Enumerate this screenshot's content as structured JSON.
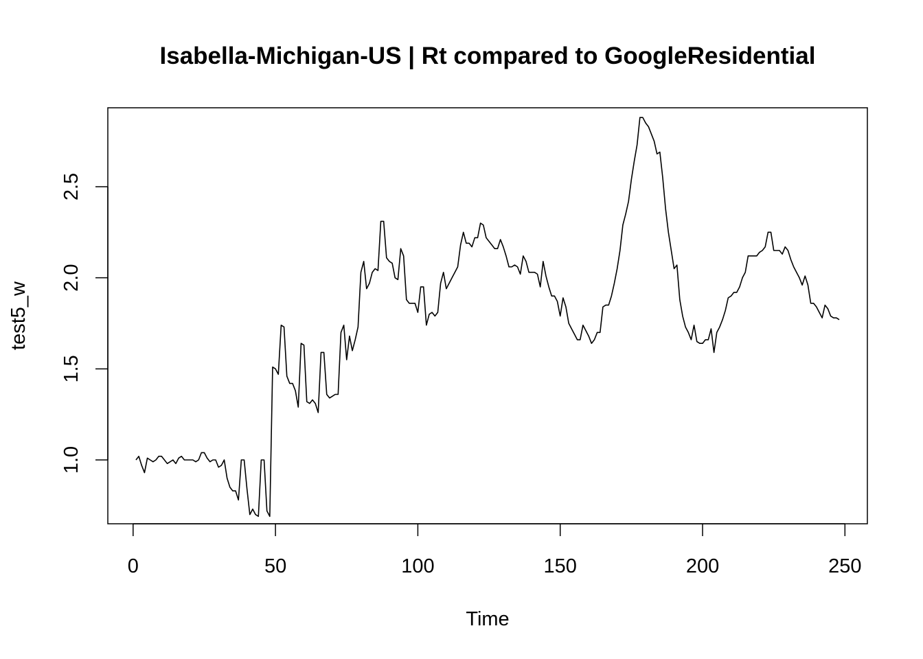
{
  "chart_data": {
    "type": "line",
    "title": "Isabella-Michigan-US | Rt compared to GoogleResidential",
    "xlabel": "Time",
    "ylabel": "test5_w",
    "xlim": [
      -8.88,
      257.88
    ],
    "ylim": [
      0.6495,
      2.9335
    ],
    "xticks": [
      0,
      50,
      100,
      150,
      200,
      250
    ],
    "xtick_labels": [
      "0",
      "50",
      "100",
      "150",
      "200",
      "250"
    ],
    "yticks": [
      1.0,
      1.5,
      2.0,
      2.5
    ],
    "ytick_labels": [
      "1.0",
      "1.5",
      "2.0",
      "2.5"
    ],
    "grid": false,
    "line_color": "#000000",
    "series": [
      {
        "x": [
          1,
          2,
          3,
          4,
          5,
          6,
          7,
          8,
          9,
          10,
          11,
          12,
          13,
          14,
          15,
          16,
          17,
          18,
          19,
          20,
          21,
          22,
          23,
          24,
          25,
          26,
          27,
          28,
          29,
          30,
          31,
          32,
          33,
          34,
          35,
          36,
          37,
          38,
          39,
          40,
          41,
          42,
          43,
          44,
          45,
          46,
          47,
          48,
          49,
          50,
          51,
          52,
          53,
          54,
          55,
          56,
          57,
          58,
          59,
          60,
          61,
          62,
          63,
          64,
          65,
          66,
          67,
          68,
          69,
          70,
          71,
          72,
          73,
          74,
          75,
          76,
          77,
          78,
          79,
          80,
          81,
          82,
          83,
          84,
          85,
          86,
          87,
          88,
          89,
          90,
          91,
          92,
          93,
          94,
          95,
          96,
          97,
          98,
          99,
          100,
          101,
          102,
          103,
          104,
          105,
          106,
          107,
          108,
          109,
          110,
          111,
          112,
          113,
          114,
          115,
          116,
          117,
          118,
          119,
          120,
          121,
          122,
          123,
          124,
          125,
          126,
          127,
          128,
          129,
          130,
          131,
          132,
          133,
          134,
          135,
          136,
          137,
          138,
          139,
          140,
          141,
          142,
          143,
          144,
          145,
          146,
          147,
          148,
          149,
          150,
          151,
          152,
          153,
          154,
          155,
          156,
          157,
          158,
          159,
          160,
          161,
          162,
          163,
          164,
          165,
          166,
          167,
          168,
          169,
          170,
          171,
          172,
          173,
          174,
          175,
          176,
          177,
          178,
          179,
          180,
          181,
          182,
          183,
          184,
          185,
          186,
          187,
          188,
          189,
          190,
          191,
          192,
          193,
          194,
          195,
          196,
          197,
          198,
          199,
          200,
          201,
          202,
          203,
          204,
          205,
          206,
          207,
          208,
          209,
          210,
          211,
          212,
          213,
          214,
          215,
          216,
          217,
          218,
          219,
          220,
          221,
          222,
          223,
          224,
          225,
          226,
          227,
          228,
          229,
          230,
          231,
          232,
          233,
          234,
          235,
          236,
          237,
          238,
          239,
          240,
          241,
          242,
          243,
          244,
          245,
          246,
          247,
          248
        ],
        "values": [
          1.0,
          1.02,
          0.97,
          0.93,
          1.01,
          1.0,
          0.99,
          1.0,
          1.02,
          1.02,
          1.0,
          0.98,
          0.99,
          1.0,
          0.98,
          1.01,
          1.02,
          1.0,
          1.0,
          1.0,
          1.0,
          0.99,
          1.0,
          1.04,
          1.04,
          1.01,
          0.99,
          1.0,
          1.0,
          0.96,
          0.97,
          1.0,
          0.9,
          0.85,
          0.83,
          0.83,
          0.78,
          1.0,
          1.0,
          0.84,
          0.7,
          0.73,
          0.7,
          0.69,
          1.0,
          1.0,
          0.72,
          0.69,
          1.51,
          1.5,
          1.47,
          1.74,
          1.73,
          1.46,
          1.42,
          1.42,
          1.38,
          1.29,
          1.64,
          1.63,
          1.32,
          1.31,
          1.33,
          1.31,
          1.26,
          1.59,
          1.59,
          1.36,
          1.34,
          1.35,
          1.36,
          1.36,
          1.7,
          1.74,
          1.55,
          1.68,
          1.6,
          1.66,
          1.73,
          2.03,
          2.09,
          1.94,
          1.97,
          2.03,
          2.05,
          2.04,
          2.31,
          2.31,
          2.11,
          2.09,
          2.08,
          2.0,
          1.99,
          2.16,
          2.12,
          1.88,
          1.86,
          1.86,
          1.86,
          1.81,
          1.95,
          1.95,
          1.74,
          1.8,
          1.81,
          1.79,
          1.81,
          1.97,
          2.03,
          1.94,
          1.97,
          2.0,
          2.03,
          2.06,
          2.18,
          2.25,
          2.19,
          2.19,
          2.17,
          2.22,
          2.22,
          2.3,
          2.29,
          2.22,
          2.2,
          2.18,
          2.16,
          2.16,
          2.21,
          2.17,
          2.12,
          2.06,
          2.06,
          2.07,
          2.06,
          2.02,
          2.12,
          2.09,
          2.03,
          2.03,
          2.03,
          2.02,
          1.95,
          2.09,
          2.01,
          1.95,
          1.9,
          1.9,
          1.87,
          1.79,
          1.89,
          1.84,
          1.75,
          1.72,
          1.69,
          1.66,
          1.66,
          1.74,
          1.71,
          1.68,
          1.64,
          1.66,
          1.7,
          1.7,
          1.84,
          1.85,
          1.85,
          1.9,
          1.97,
          2.05,
          2.15,
          2.29,
          2.35,
          2.42,
          2.54,
          2.64,
          2.73,
          2.88,
          2.88,
          2.85,
          2.83,
          2.79,
          2.75,
          2.68,
          2.69,
          2.55,
          2.38,
          2.25,
          2.15,
          2.05,
          2.07,
          1.88,
          1.79,
          1.73,
          1.7,
          1.66,
          1.74,
          1.65,
          1.64,
          1.64,
          1.66,
          1.66,
          1.72,
          1.59,
          1.7,
          1.73,
          1.77,
          1.82,
          1.89,
          1.9,
          1.92,
          1.92,
          1.95,
          2.0,
          2.03,
          2.12,
          2.12,
          2.12,
          2.12,
          2.14,
          2.15,
          2.17,
          2.25,
          2.25,
          2.15,
          2.15,
          2.15,
          2.13,
          2.17,
          2.15,
          2.1,
          2.06,
          2.03,
          2.0,
          1.96,
          2.01,
          1.96,
          1.86,
          1.86,
          1.84,
          1.81,
          1.78,
          1.85,
          1.83,
          1.79,
          1.78,
          1.78,
          1.77
        ]
      }
    ]
  }
}
